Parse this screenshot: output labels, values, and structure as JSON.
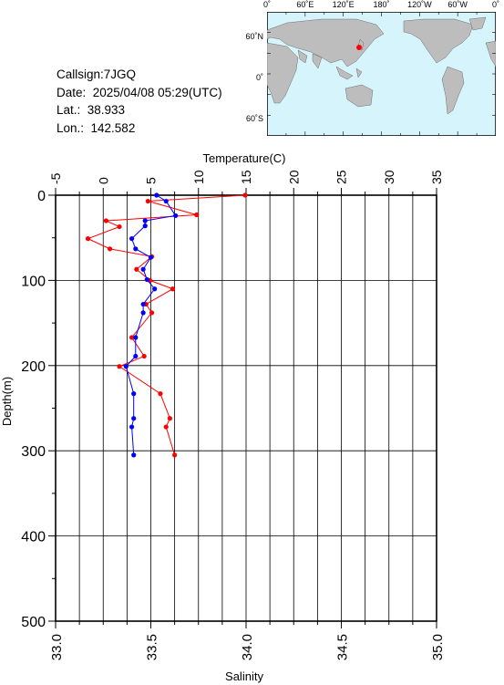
{
  "info": {
    "callsign": "Callsign:7JGQ",
    "date": "Date:  2025/04/08 05:29(UTC)",
    "lat": "Lat.:  38.933",
    "lon": "Lon.:  142.582"
  },
  "map": {
    "top_labels": [
      "0˚",
      "60˚E",
      "120˚E",
      "180˚",
      "120˚W",
      "60˚W",
      "0˚"
    ],
    "left_labels": [
      "60˚N",
      "0˚",
      "60˚S"
    ],
    "ocean_color": "#d6f4fb",
    "land_color": "#bdbdbd",
    "marker_color": "#ff0000",
    "marker_lat": 38.933,
    "marker_lon": 142.582
  },
  "chart_data": {
    "type": "line",
    "y_axis": {
      "label": "Depth(m)",
      "range": [
        0,
        500
      ],
      "ticks": [
        "0",
        "100",
        "200",
        "300",
        "400",
        "500"
      ],
      "inverted": true
    },
    "temperature_axis": {
      "label": "Temperature(C)",
      "range": [
        -5,
        35
      ],
      "ticks": [
        "-5",
        "0",
        "5",
        "10",
        "15",
        "20",
        "25",
        "30",
        "35"
      ]
    },
    "salinity_axis": {
      "label": "Salinity",
      "range": [
        33.0,
        35.0
      ],
      "ticks": [
        "33.0",
        "33.5",
        "34.0",
        "34.5",
        "35.0"
      ]
    },
    "grid": true,
    "series": [
      {
        "color": "#ff0000",
        "x_axis": "temperature",
        "points": [
          [
            14.9,
            0
          ],
          [
            4.7,
            7
          ],
          [
            9.8,
            23
          ],
          [
            0.3,
            30
          ],
          [
            1.7,
            37
          ],
          [
            -1.6,
            51
          ],
          [
            0.7,
            63
          ],
          [
            5.1,
            72
          ],
          [
            3.5,
            87
          ],
          [
            4.9,
            100
          ],
          [
            7.3,
            110
          ],
          [
            4.5,
            128
          ],
          [
            5.1,
            138
          ],
          [
            3.0,
            167
          ],
          [
            4.3,
            189
          ],
          [
            1.7,
            201
          ],
          [
            6.0,
            233
          ],
          [
            7.0,
            262
          ],
          [
            6.6,
            272
          ],
          [
            7.5,
            305
          ]
        ]
      },
      {
        "color": "#0000ff",
        "x_axis": "salinity",
        "points": [
          [
            33.53,
            0
          ],
          [
            33.58,
            7
          ],
          [
            33.63,
            24
          ],
          [
            33.47,
            30
          ],
          [
            33.47,
            36
          ],
          [
            33.4,
            51
          ],
          [
            33.42,
            63
          ],
          [
            33.5,
            73
          ],
          [
            33.46,
            87
          ],
          [
            33.48,
            99
          ],
          [
            33.52,
            110
          ],
          [
            33.46,
            128
          ],
          [
            33.46,
            138
          ],
          [
            33.42,
            167
          ],
          [
            33.42,
            189
          ],
          [
            33.37,
            201
          ],
          [
            33.41,
            233
          ],
          [
            33.41,
            262
          ],
          [
            33.4,
            272
          ],
          [
            33.41,
            305
          ]
        ]
      }
    ]
  }
}
